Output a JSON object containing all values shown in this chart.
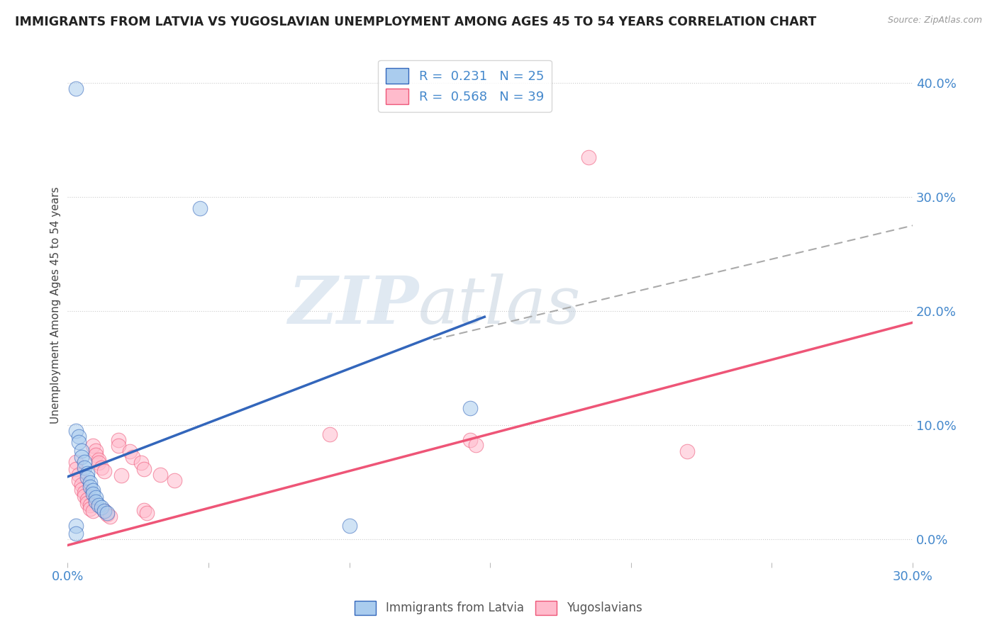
{
  "title": "IMMIGRANTS FROM LATVIA VS YUGOSLAVIAN UNEMPLOYMENT AMONG AGES 45 TO 54 YEARS CORRELATION CHART",
  "source": "Source: ZipAtlas.com",
  "ylabel": "Unemployment Among Ages 45 to 54 years",
  "xlim": [
    0.0,
    0.3
  ],
  "ylim": [
    -0.02,
    0.43
  ],
  "xticks": [
    0.0,
    0.05,
    0.1,
    0.15,
    0.2,
    0.25,
    0.3
  ],
  "yticks": [
    0.0,
    0.1,
    0.2,
    0.3,
    0.4
  ],
  "legend_R1": "R =  0.231",
  "legend_N1": "N = 25",
  "legend_R2": "R =  0.568",
  "legend_N2": "N = 39",
  "label1": "Immigrants from Latvia",
  "label2": "Yugoslavians",
  "blue_color": "#AACCEE",
  "pink_color": "#FFBBCC",
  "blue_line_color": "#3366BB",
  "pink_line_color": "#EE5577",
  "axis_color": "#4488CC",
  "watermark_zip": "ZIP",
  "watermark_atlas": "atlas",
  "blue_scatter": [
    [
      0.003,
      0.395
    ],
    [
      0.003,
      0.095
    ],
    [
      0.004,
      0.09
    ],
    [
      0.004,
      0.085
    ],
    [
      0.005,
      0.078
    ],
    [
      0.005,
      0.072
    ],
    [
      0.006,
      0.068
    ],
    [
      0.006,
      0.063
    ],
    [
      0.007,
      0.058
    ],
    [
      0.007,
      0.054
    ],
    [
      0.008,
      0.05
    ],
    [
      0.008,
      0.046
    ],
    [
      0.009,
      0.043
    ],
    [
      0.009,
      0.04
    ],
    [
      0.01,
      0.037
    ],
    [
      0.01,
      0.033
    ],
    [
      0.011,
      0.03
    ],
    [
      0.012,
      0.028
    ],
    [
      0.013,
      0.025
    ],
    [
      0.014,
      0.023
    ],
    [
      0.047,
      0.29
    ],
    [
      0.1,
      0.012
    ],
    [
      0.143,
      0.115
    ],
    [
      0.003,
      0.012
    ],
    [
      0.003,
      0.005
    ]
  ],
  "pink_scatter": [
    [
      0.003,
      0.068
    ],
    [
      0.003,
      0.062
    ],
    [
      0.004,
      0.057
    ],
    [
      0.004,
      0.052
    ],
    [
      0.005,
      0.048
    ],
    [
      0.005,
      0.044
    ],
    [
      0.006,
      0.041
    ],
    [
      0.006,
      0.038
    ],
    [
      0.007,
      0.035
    ],
    [
      0.007,
      0.032
    ],
    [
      0.008,
      0.03
    ],
    [
      0.008,
      0.027
    ],
    [
      0.009,
      0.025
    ],
    [
      0.009,
      0.082
    ],
    [
      0.01,
      0.078
    ],
    [
      0.01,
      0.074
    ],
    [
      0.011,
      0.07
    ],
    [
      0.011,
      0.067
    ],
    [
      0.012,
      0.063
    ],
    [
      0.013,
      0.06
    ],
    [
      0.013,
      0.025
    ],
    [
      0.014,
      0.022
    ],
    [
      0.015,
      0.02
    ],
    [
      0.018,
      0.087
    ],
    [
      0.018,
      0.082
    ],
    [
      0.019,
      0.056
    ],
    [
      0.022,
      0.077
    ],
    [
      0.023,
      0.072
    ],
    [
      0.026,
      0.067
    ],
    [
      0.027,
      0.062
    ],
    [
      0.027,
      0.026
    ],
    [
      0.028,
      0.023
    ],
    [
      0.033,
      0.057
    ],
    [
      0.038,
      0.052
    ],
    [
      0.143,
      0.087
    ],
    [
      0.145,
      0.083
    ],
    [
      0.22,
      0.077
    ],
    [
      0.185,
      0.335
    ],
    [
      0.093,
      0.092
    ]
  ],
  "blue_solid_line": [
    [
      0.0,
      0.055
    ],
    [
      0.148,
      0.195
    ]
  ],
  "pink_solid_line": [
    [
      0.0,
      -0.005
    ],
    [
      0.3,
      0.19
    ]
  ],
  "gray_dashed_line": [
    [
      0.13,
      0.175
    ],
    [
      0.3,
      0.275
    ]
  ]
}
